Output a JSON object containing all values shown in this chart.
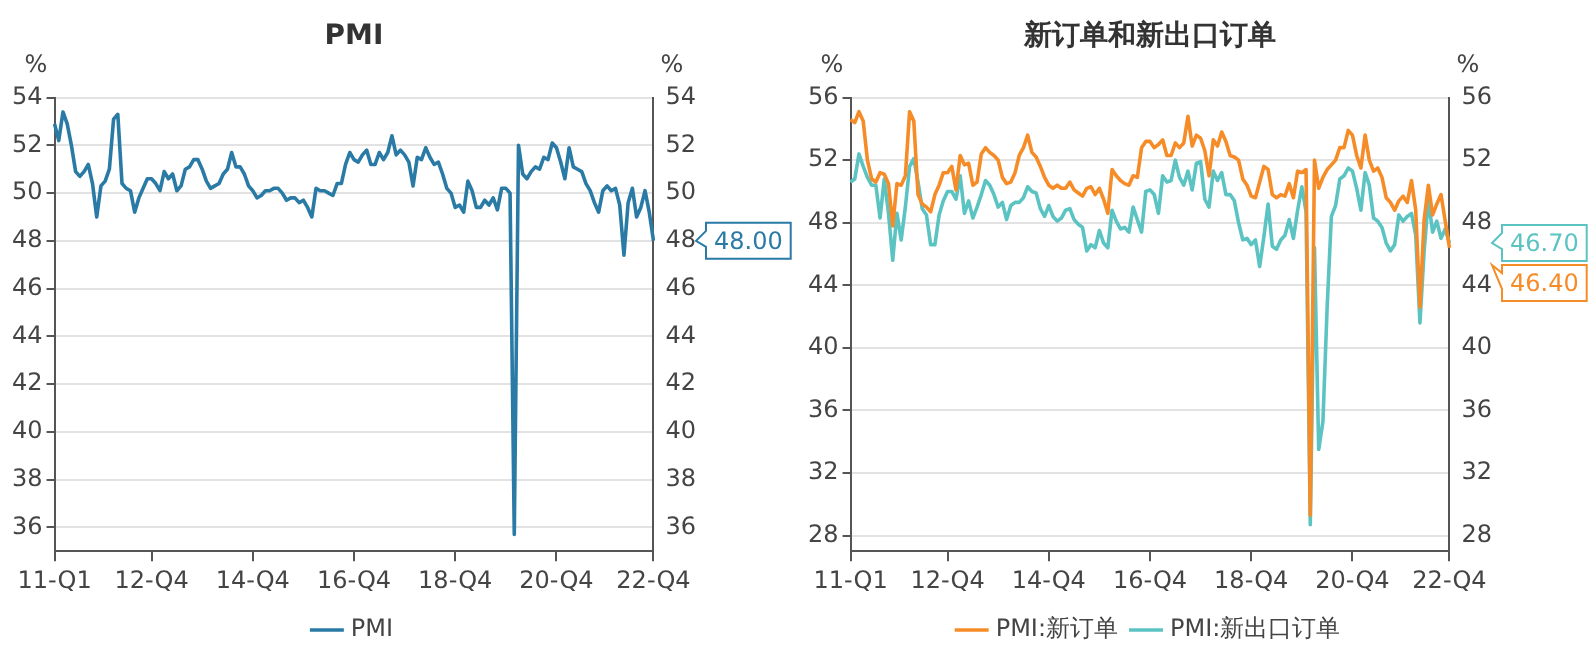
{
  "chart_data": [
    {
      "type": "line",
      "title": "PMI",
      "ylabel": "%",
      "y2label": "%",
      "categories": [
        "11-Q1",
        null,
        null,
        null,
        null,
        null,
        null,
        null,
        null,
        null,
        null,
        null,
        null,
        null,
        null,
        null,
        null,
        null,
        null,
        null,
        null,
        null,
        null,
        "12-Q4",
        null,
        null,
        null,
        null,
        null,
        null,
        null,
        null,
        null,
        null,
        null,
        null,
        null,
        null,
        null,
        null,
        null,
        null,
        null,
        null,
        null,
        null,
        null,
        "14-Q4",
        null,
        null,
        null,
        null,
        null,
        null,
        null,
        null,
        null,
        null,
        null,
        null,
        null,
        null,
        null,
        null,
        null,
        null,
        null,
        null,
        null,
        null,
        null,
        "16-Q4",
        null,
        null,
        null,
        null,
        null,
        null,
        null,
        null,
        null,
        null,
        null,
        null,
        null,
        null,
        null,
        null,
        null,
        null,
        null,
        null,
        null,
        null,
        null,
        "18-Q4",
        null,
        null,
        null,
        null,
        null,
        null,
        null,
        null,
        null,
        null,
        null,
        null,
        null,
        null,
        null,
        null,
        null,
        null,
        null,
        null,
        null,
        null,
        null,
        "20-Q4",
        null,
        null,
        null,
        null,
        null,
        null,
        null,
        null,
        null,
        null,
        null,
        null,
        null,
        null,
        null,
        null,
        null,
        null,
        null,
        null,
        null,
        null,
        "22-Q4"
      ],
      "series": [
        {
          "name": "PMI",
          "color": "#2a7aa6",
          "values": [
            52.9,
            52.2,
            53.4,
            52.9,
            52.0,
            50.9,
            50.7,
            50.9,
            51.2,
            50.4,
            49.0,
            50.3,
            50.5,
            51.0,
            53.1,
            53.3,
            50.4,
            50.2,
            50.1,
            49.2,
            49.8,
            50.2,
            50.6,
            50.6,
            50.4,
            50.1,
            50.9,
            50.6,
            50.8,
            50.1,
            50.3,
            51.0,
            51.1,
            51.4,
            51.4,
            51.0,
            50.5,
            50.2,
            50.3,
            50.4,
            50.8,
            51.0,
            51.7,
            51.1,
            51.1,
            50.8,
            50.3,
            50.1,
            49.8,
            49.9,
            50.1,
            50.1,
            50.2,
            50.2,
            50.0,
            49.7,
            49.8,
            49.8,
            49.6,
            49.7,
            49.4,
            49.0,
            50.2,
            50.1,
            50.1,
            50.0,
            49.9,
            50.4,
            50.4,
            51.2,
            51.7,
            51.4,
            51.3,
            51.6,
            51.8,
            51.2,
            51.2,
            51.7,
            51.4,
            51.7,
            52.4,
            51.6,
            51.8,
            51.6,
            51.3,
            50.3,
            51.5,
            51.4,
            51.9,
            51.5,
            51.2,
            51.3,
            50.8,
            50.2,
            50.0,
            49.4,
            49.5,
            49.2,
            50.5,
            50.1,
            49.4,
            49.4,
            49.7,
            49.5,
            49.8,
            49.3,
            50.2,
            50.2,
            50.0,
            35.7,
            52.0,
            50.8,
            50.6,
            50.9,
            51.1,
            51.0,
            51.5,
            51.4,
            52.1,
            51.9,
            51.3,
            50.6,
            51.9,
            51.1,
            51.0,
            50.9,
            50.4,
            50.1,
            49.6,
            49.2,
            50.1,
            50.3,
            50.1,
            50.2,
            49.5,
            47.4,
            49.6,
            50.2,
            49.0,
            49.4,
            50.1,
            49.2,
            48.0
          ]
        }
      ],
      "ylim": [
        35,
        54
      ],
      "yticks": [
        36,
        38,
        40,
        42,
        44,
        46,
        48,
        50,
        52,
        54
      ],
      "y2lim": [
        35,
        54
      ],
      "y2ticks": [
        36,
        38,
        40,
        42,
        44,
        46,
        48,
        50,
        52,
        54
      ],
      "annotations": [
        {
          "text": "48.00",
          "x": "22-Q4",
          "y": 48
        }
      ],
      "grid": "y",
      "legend": "bottom",
      "marker": "none",
      "line_style": "solid"
    },
    {
      "type": "line",
      "title": "新订单和新出口订单",
      "ylabel": "%",
      "y2label": "%",
      "categories": [
        "11-Q1",
        null,
        null,
        null,
        null,
        null,
        null,
        null,
        null,
        null,
        null,
        null,
        null,
        null,
        null,
        null,
        null,
        null,
        null,
        null,
        null,
        null,
        null,
        "12-Q4",
        null,
        null,
        null,
        null,
        null,
        null,
        null,
        null,
        null,
        null,
        null,
        null,
        null,
        null,
        null,
        null,
        null,
        null,
        null,
        null,
        null,
        null,
        null,
        "14-Q4",
        null,
        null,
        null,
        null,
        null,
        null,
        null,
        null,
        null,
        null,
        null,
        null,
        null,
        null,
        null,
        null,
        null,
        null,
        null,
        null,
        null,
        null,
        null,
        "16-Q4",
        null,
        null,
        null,
        null,
        null,
        null,
        null,
        null,
        null,
        null,
        null,
        null,
        null,
        null,
        null,
        null,
        null,
        null,
        null,
        null,
        null,
        null,
        null,
        "18-Q4",
        null,
        null,
        null,
        null,
        null,
        null,
        null,
        null,
        null,
        null,
        null,
        null,
        null,
        null,
        null,
        null,
        null,
        null,
        null,
        null,
        null,
        null,
        null,
        "20-Q4",
        null,
        null,
        null,
        null,
        null,
        null,
        null,
        null,
        null,
        null,
        null,
        null,
        null,
        null,
        null,
        null,
        null,
        null,
        null,
        null,
        null,
        null,
        "22-Q4"
      ],
      "series": [
        {
          "name": "PMI:新订单",
          "color": "#f68c28",
          "values": [
            54.6,
            54.4,
            55.1,
            54.5,
            52.0,
            50.8,
            50.6,
            51.2,
            51.1,
            50.5,
            47.8,
            50.5,
            50.4,
            51.0,
            55.1,
            54.5,
            49.8,
            49.2,
            49.0,
            48.7,
            49.8,
            50.4,
            51.2,
            51.2,
            51.6,
            50.1,
            52.3,
            51.7,
            51.8,
            50.4,
            50.6,
            52.4,
            52.8,
            52.5,
            52.3,
            52.0,
            50.9,
            50.5,
            50.6,
            51.2,
            52.3,
            52.8,
            53.6,
            52.5,
            52.2,
            51.6,
            50.9,
            50.4,
            50.2,
            50.4,
            50.2,
            50.2,
            50.6,
            50.1,
            49.9,
            49.7,
            50.2,
            50.3,
            49.8,
            50.2,
            49.5,
            48.6,
            51.4,
            51.0,
            50.7,
            50.5,
            50.4,
            51.0,
            50.9,
            52.8,
            53.2,
            53.2,
            52.8,
            53.0,
            53.3,
            52.3,
            52.3,
            53.1,
            52.8,
            53.1,
            54.8,
            52.9,
            53.6,
            53.4,
            52.6,
            51.0,
            53.3,
            52.9,
            53.8,
            53.2,
            52.3,
            52.2,
            52.0,
            50.8,
            50.4,
            49.7,
            49.6,
            50.6,
            51.6,
            51.4,
            49.8,
            49.6,
            49.8,
            49.7,
            50.5,
            49.6,
            51.3,
            51.2,
            51.4,
            29.3,
            52.0,
            50.2,
            50.9,
            51.4,
            51.7,
            52.0,
            52.8,
            52.8,
            53.9,
            53.6,
            52.3,
            51.5,
            53.6,
            52.0,
            51.3,
            51.5,
            50.9,
            49.6,
            49.3,
            48.8,
            49.4,
            49.7,
            49.3,
            50.7,
            48.8,
            42.6,
            48.2,
            50.4,
            48.5,
            49.2,
            49.8,
            48.1,
            46.4
          ]
        },
        {
          "name": "PMI:新出口订单",
          "color": "#5cc3c3",
          "values": [
            50.6,
            50.8,
            52.4,
            51.6,
            50.9,
            50.4,
            50.4,
            48.3,
            50.8,
            48.6,
            45.6,
            48.6,
            46.9,
            49.0,
            51.6,
            52.1,
            50.6,
            48.9,
            48.5,
            46.6,
            46.6,
            48.5,
            49.4,
            50.0,
            50.0,
            49.5,
            51.0,
            48.6,
            49.4,
            48.3,
            49.0,
            49.8,
            50.7,
            50.4,
            49.8,
            49.0,
            49.3,
            48.2,
            49.1,
            49.3,
            49.3,
            49.6,
            50.3,
            50.0,
            49.9,
            48.9,
            48.4,
            49.1,
            48.4,
            48.1,
            48.3,
            48.8,
            48.9,
            48.2,
            47.9,
            47.7,
            46.2,
            46.6,
            46.4,
            47.5,
            46.7,
            46.4,
            48.8,
            48.1,
            47.6,
            47.7,
            47.4,
            49.0,
            48.2,
            47.4,
            50.0,
            50.1,
            49.8,
            48.6,
            51.0,
            50.6,
            50.7,
            52.0,
            50.9,
            50.4,
            51.3,
            50.1,
            51.8,
            51.9,
            49.5,
            49.0,
            51.3,
            50.7,
            51.2,
            49.8,
            49.8,
            49.4,
            48.0,
            46.9,
            47.0,
            46.6,
            46.9,
            45.2,
            47.1,
            49.2,
            46.5,
            46.3,
            46.9,
            47.2,
            48.2,
            47.0,
            48.8,
            50.3,
            48.7,
            28.7,
            46.4,
            33.5,
            35.3,
            42.6,
            48.4,
            49.1,
            50.8,
            51.0,
            51.5,
            51.3,
            50.2,
            48.8,
            51.2,
            50.4,
            48.3,
            48.1,
            47.7,
            46.7,
            46.2,
            46.6,
            48.5,
            48.1,
            48.4,
            48.6,
            47.2,
            41.6,
            46.2,
            49.5,
            47.4,
            48.1,
            47.0,
            47.6,
            46.7
          ]
        }
      ],
      "ylim": [
        27,
        56
      ],
      "yticks": [
        28,
        32,
        36,
        40,
        44,
        48,
        52,
        56
      ],
      "y2lim": [
        27,
        56
      ],
      "y2ticks": [
        28,
        32,
        36,
        40,
        44,
        48,
        52,
        56
      ],
      "annotations": [
        {
          "text": "46.40",
          "x": "22-Q4",
          "y": 46.4
        },
        {
          "text": "46.70",
          "x": "22-Q4",
          "y": 46.7
        }
      ],
      "grid": "y",
      "legend": "bottom",
      "marker": "none",
      "line_style": "solid"
    }
  ]
}
